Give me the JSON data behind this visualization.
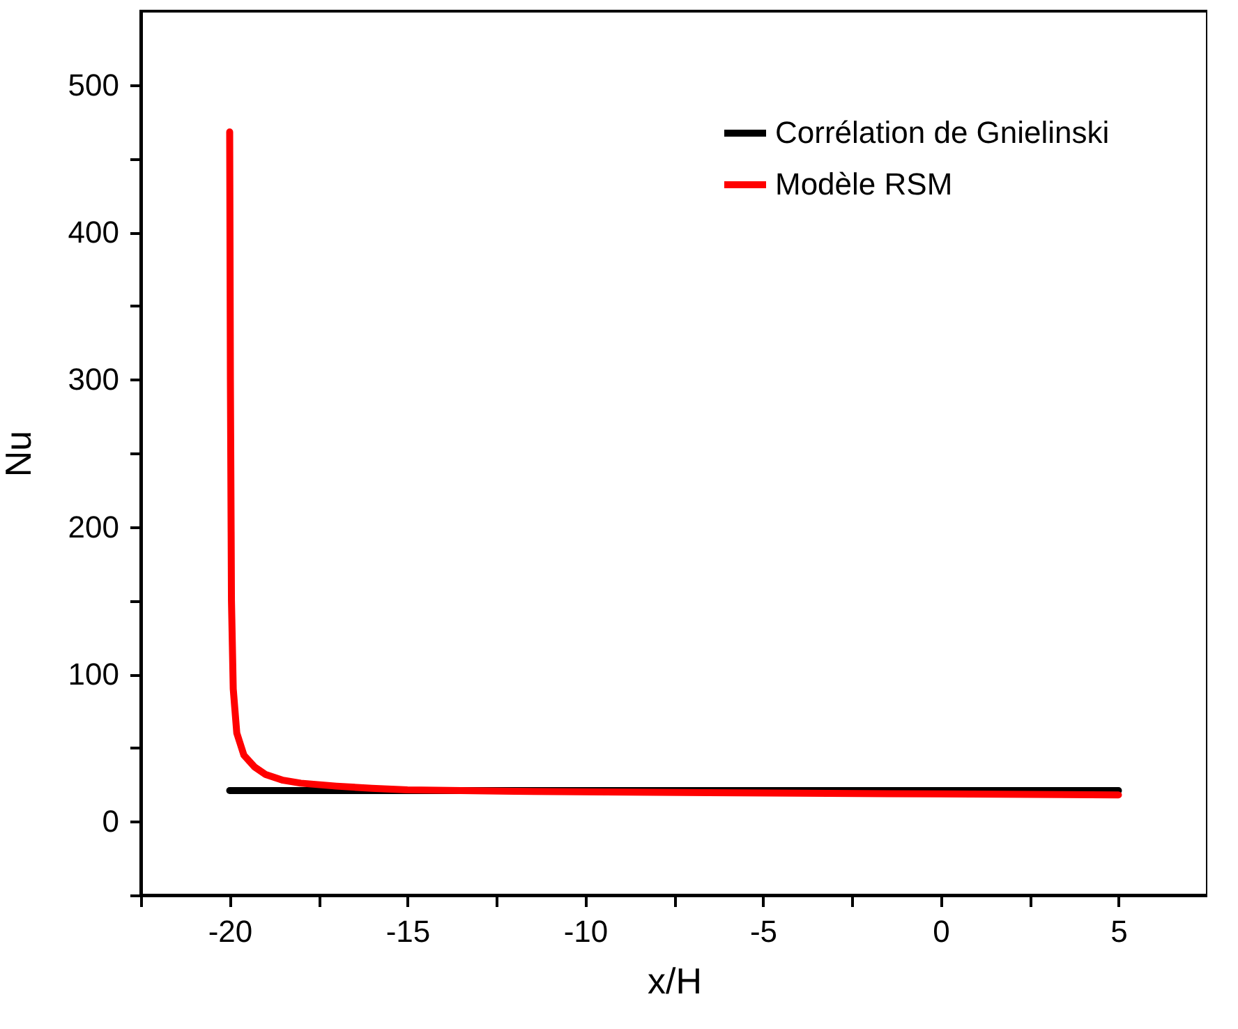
{
  "chart_data": {
    "type": "line",
    "xlabel": "x/H",
    "ylabel": "Nu",
    "xlim": [
      -22.5,
      7.5
    ],
    "xticks": [
      {
        "value": -22.5,
        "label": null
      },
      -20,
      {
        "value": -17.5,
        "label": null
      },
      -15,
      {
        "value": -12.5,
        "label": null
      },
      -10,
      {
        "value": -7.5,
        "label": null
      },
      -5,
      {
        "value": -2.5,
        "label": null
      },
      0,
      {
        "value": 2.5,
        "label": null
      },
      5
    ],
    "ylim": [
      -50,
      550
    ],
    "yticks": [
      {
        "value": -50,
        "label": null
      },
      0,
      {
        "value": 50,
        "label": null
      },
      100,
      {
        "value": 150,
        "label": null
      },
      200,
      {
        "value": 250,
        "label": null
      },
      300,
      {
        "value": 350,
        "label": null
      },
      400,
      {
        "value": 450,
        "label": null
      },
      500
    ],
    "grid": false,
    "legend": "top right",
    "line_style": "solid",
    "marker": "none",
    "series": [
      {
        "name": "Corrélation de Gnielinski",
        "color": "#000000",
        "x": [
          -20,
          -15,
          -10,
          -5,
          0,
          5
        ],
        "values": [
          21,
          21,
          21,
          21,
          21,
          21
        ]
      },
      {
        "name": "Modèle RSM",
        "color": "#ff0000",
        "x": [
          -20,
          -19.98,
          -19.95,
          -19.9,
          -19.8,
          -19.6,
          -19.3,
          -19,
          -18.5,
          -18,
          -17,
          -16,
          -15,
          -12,
          -8,
          -4,
          0,
          5
        ],
        "values": [
          468,
          300,
          150,
          90,
          60,
          45,
          37,
          32,
          28,
          26,
          24,
          22.5,
          21.5,
          20.5,
          19.8,
          19.2,
          18.7,
          18
        ]
      }
    ]
  }
}
